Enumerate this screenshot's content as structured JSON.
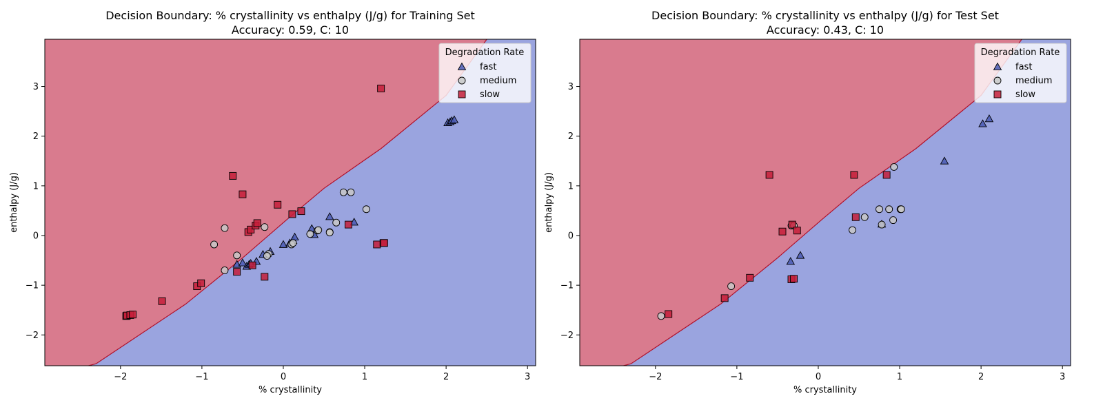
{
  "chart_data": [
    {
      "type": "scatter",
      "title_line1": "Decision Boundary: % crystallinity vs enthalpy (J/g) for Training Set",
      "title_line2": "Accuracy: 0.59, C: 10",
      "xlabel": "% crystallinity",
      "ylabel": "enthalpy (J/g)",
      "xlim": [
        -2.93,
        3.1
      ],
      "ylim": [
        -2.62,
        3.95
      ],
      "xticks": [
        -2,
        -1,
        0,
        1,
        2,
        3
      ],
      "yticks": [
        -2,
        -1,
        0,
        1,
        2,
        3
      ],
      "regions": [
        {
          "name": "slow",
          "color": "#d97b8e",
          "side": "upper-left"
        },
        {
          "name": "fast",
          "color": "#9aa4df",
          "side": "lower-right"
        }
      ],
      "boundary": [
        [
          -2.93,
          -2.85
        ],
        [
          -2.3,
          -2.58
        ],
        [
          -1.2,
          -1.38
        ],
        [
          -0.5,
          -0.45
        ],
        [
          0.05,
          0.33
        ],
        [
          0.5,
          0.95
        ],
        [
          1.2,
          1.75
        ],
        [
          2.0,
          2.82
        ],
        [
          2.5,
          3.95
        ]
      ],
      "legend_title": "Degradation Rate",
      "legend_position": "top-right",
      "series": [
        {
          "name": "fast",
          "marker": "triangle",
          "color": "#4a5bb3",
          "points": [
            [
              -0.57,
              -0.58
            ],
            [
              -0.5,
              -0.55
            ],
            [
              -0.45,
              -0.62
            ],
            [
              -0.42,
              -0.58
            ],
            [
              -0.4,
              -0.56
            ],
            [
              -0.33,
              -0.52
            ],
            [
              -0.25,
              -0.38
            ],
            [
              -0.16,
              -0.32
            ],
            [
              0.0,
              -0.18
            ],
            [
              0.08,
              -0.15
            ],
            [
              0.12,
              -0.1
            ],
            [
              0.14,
              -0.03
            ],
            [
              0.35,
              0.14
            ],
            [
              0.38,
              0.02
            ],
            [
              0.57,
              0.38
            ],
            [
              0.87,
              0.27
            ],
            [
              2.02,
              2.27
            ],
            [
              2.05,
              2.29
            ],
            [
              2.07,
              2.31
            ],
            [
              2.1,
              2.33
            ]
          ]
        },
        {
          "name": "medium",
          "marker": "circle",
          "color": "#c8c8c8",
          "points": [
            [
              -0.85,
              -0.18
            ],
            [
              -0.72,
              0.15
            ],
            [
              -0.72,
              -0.7
            ],
            [
              -0.57,
              -0.4
            ],
            [
              -0.23,
              0.17
            ],
            [
              -0.18,
              -0.37
            ],
            [
              -0.2,
              -0.41
            ],
            [
              0.1,
              -0.18
            ],
            [
              0.12,
              -0.15
            ],
            [
              0.33,
              0.03
            ],
            [
              0.42,
              0.1
            ],
            [
              0.43,
              0.11
            ],
            [
              0.57,
              0.07
            ],
            [
              0.57,
              0.06
            ],
            [
              0.65,
              0.26
            ],
            [
              0.74,
              0.87
            ],
            [
              0.83,
              0.87
            ],
            [
              1.02,
              0.53
            ]
          ]
        },
        {
          "name": "slow",
          "marker": "square",
          "color": "#c41e3a",
          "points": [
            [
              -1.93,
              -1.62
            ],
            [
              -1.92,
              -1.61
            ],
            [
              -1.88,
              -1.6
            ],
            [
              -1.85,
              -1.59
            ],
            [
              -1.49,
              -1.32
            ],
            [
              -1.06,
              -1.02
            ],
            [
              -1.01,
              -0.96
            ],
            [
              -0.62,
              1.2
            ],
            [
              -0.57,
              -0.73
            ],
            [
              -0.5,
              0.83
            ],
            [
              -0.43,
              0.07
            ],
            [
              -0.4,
              0.12
            ],
            [
              -0.38,
              -0.6
            ],
            [
              -0.34,
              0.2
            ],
            [
              -0.32,
              0.25
            ],
            [
              -0.23,
              -0.83
            ],
            [
              -0.07,
              0.62
            ],
            [
              0.11,
              0.43
            ],
            [
              0.22,
              0.49
            ],
            [
              0.8,
              0.22
            ],
            [
              1.15,
              -0.18
            ],
            [
              1.2,
              2.96
            ],
            [
              1.23,
              -0.15
            ],
            [
              1.24,
              -0.15
            ]
          ]
        }
      ]
    },
    {
      "type": "scatter",
      "title_line1": "Decision Boundary: % crystallinity vs enthalpy (J/g) for Test Set",
      "title_line2": "Accuracy: 0.43, C: 10",
      "xlabel": "% crystallinity",
      "ylabel": "enthalpy (J/g)",
      "xlim": [
        -2.93,
        3.1
      ],
      "ylim": [
        -2.62,
        3.95
      ],
      "xticks": [
        -2,
        -1,
        0,
        1,
        2,
        3
      ],
      "yticks": [
        -2,
        -1,
        0,
        1,
        2,
        3
      ],
      "regions": [
        {
          "name": "slow",
          "color": "#d97b8e",
          "side": "upper-left"
        },
        {
          "name": "fast",
          "color": "#9aa4df",
          "side": "lower-right"
        }
      ],
      "boundary": [
        [
          -2.93,
          -2.85
        ],
        [
          -2.3,
          -2.58
        ],
        [
          -1.2,
          -1.38
        ],
        [
          -0.5,
          -0.45
        ],
        [
          0.05,
          0.33
        ],
        [
          0.5,
          0.95
        ],
        [
          1.2,
          1.75
        ],
        [
          2.0,
          2.82
        ],
        [
          2.5,
          3.95
        ]
      ],
      "legend_title": "Degradation Rate",
      "legend_position": "top-right",
      "series": [
        {
          "name": "fast",
          "marker": "triangle",
          "color": "#4a5bb3",
          "points": [
            [
              -0.34,
              -0.52
            ],
            [
              -0.22,
              -0.4
            ],
            [
              0.78,
              0.23
            ],
            [
              1.55,
              1.5
            ],
            [
              2.02,
              2.25
            ],
            [
              2.1,
              2.35
            ]
          ]
        },
        {
          "name": "medium",
          "marker": "circle",
          "color": "#c8c8c8",
          "points": [
            [
              -1.93,
              -1.62
            ],
            [
              -1.07,
              -1.02
            ],
            [
              -0.33,
              0.2
            ],
            [
              -0.3,
              0.2
            ],
            [
              0.42,
              0.11
            ],
            [
              0.57,
              0.37
            ],
            [
              0.75,
              0.53
            ],
            [
              0.78,
              0.22
            ],
            [
              0.87,
              0.53
            ],
            [
              0.92,
              0.31
            ],
            [
              0.93,
              1.38
            ],
            [
              1.01,
              0.53
            ],
            [
              1.02,
              0.53
            ]
          ]
        },
        {
          "name": "slow",
          "marker": "square",
          "color": "#c41e3a",
          "points": [
            [
              -1.84,
              -1.58
            ],
            [
              -1.15,
              -1.26
            ],
            [
              -0.84,
              -0.85
            ],
            [
              -0.6,
              1.22
            ],
            [
              -0.44,
              0.08
            ],
            [
              -0.33,
              -0.88
            ],
            [
              -0.32,
              0.22
            ],
            [
              -0.3,
              -0.87
            ],
            [
              -0.26,
              0.1
            ],
            [
              0.44,
              1.22
            ],
            [
              0.46,
              0.37
            ],
            [
              0.84,
              1.22
            ]
          ]
        }
      ]
    }
  ]
}
